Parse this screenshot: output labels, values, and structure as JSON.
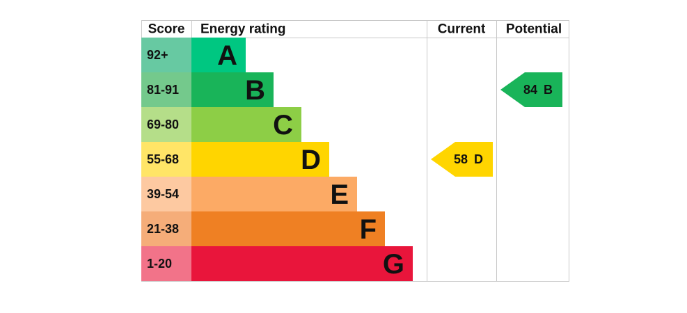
{
  "header": {
    "score": "Score",
    "rating": "Energy rating",
    "current": "Current",
    "potential": "Potential"
  },
  "bands": [
    {
      "score": "92+",
      "letter": "A",
      "color": "#00c781",
      "score_color": "#67c9a2"
    },
    {
      "score": "81-91",
      "letter": "B",
      "color": "#19b459",
      "score_color": "#74c98c"
    },
    {
      "score": "69-80",
      "letter": "C",
      "color": "#8dce46",
      "score_color": "#b5de89"
    },
    {
      "score": "55-68",
      "letter": "D",
      "color": "#ffd500",
      "score_color": "#ffe567"
    },
    {
      "score": "39-54",
      "letter": "E",
      "color": "#fcaa65",
      "score_color": "#fdc9a1"
    },
    {
      "score": "21-38",
      "letter": "F",
      "color": "#ef8023",
      "score_color": "#f5ad79"
    },
    {
      "score": "1-20",
      "letter": "G",
      "color": "#e9153b",
      "score_color": "#f27389"
    }
  ],
  "current": {
    "score": 58,
    "letter": "D"
  },
  "potential": {
    "score": 84,
    "letter": "B"
  }
}
